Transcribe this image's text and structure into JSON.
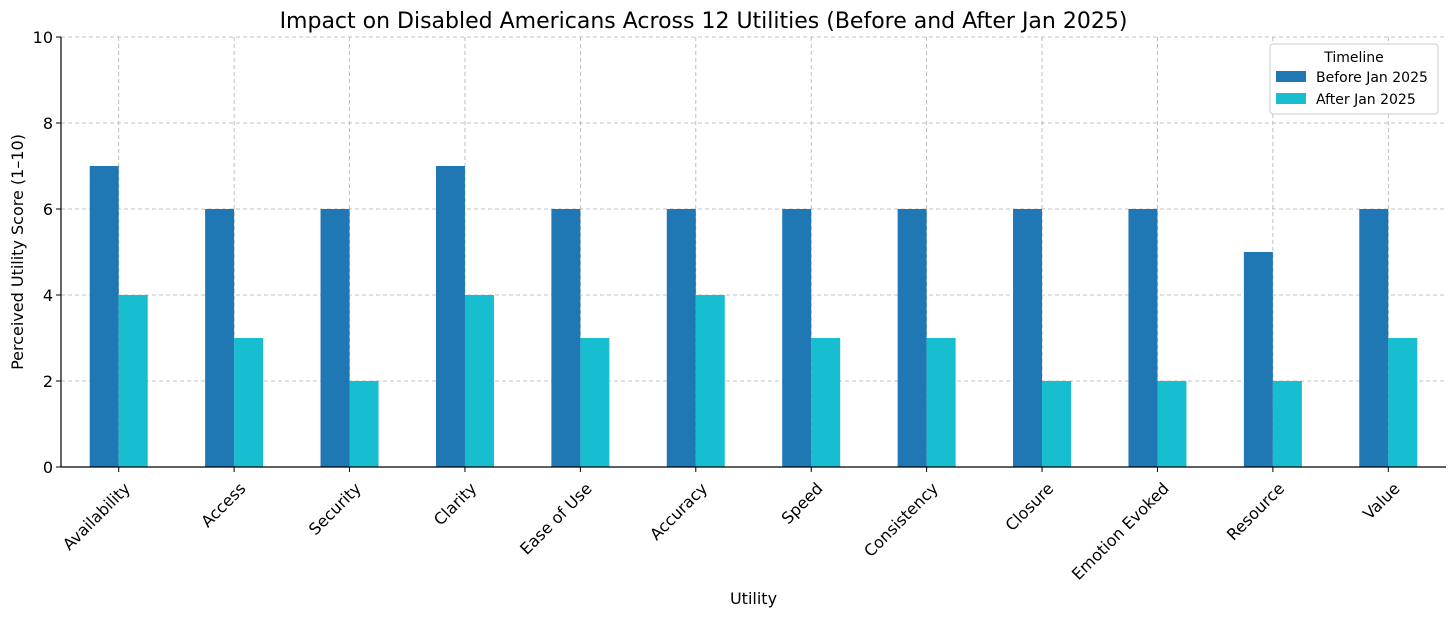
{
  "chart_data": {
    "type": "bar",
    "title": "Impact on Disabled Americans Across 12 Utilities (Before and After Jan 2025)",
    "xlabel": "Utility",
    "ylabel": "Perceived Utility Score (1–10)",
    "ylim": [
      0,
      10
    ],
    "yticks": [
      0,
      2,
      4,
      6,
      8,
      10
    ],
    "grid": true,
    "legend": {
      "title": "Timeline",
      "position": "top-right"
    },
    "categories": [
      "Availability",
      "Access",
      "Security",
      "Clarity",
      "Ease of Use",
      "Accuracy",
      "Speed",
      "Consistency",
      "Closure",
      "Emotion Evoked",
      "Resource",
      "Value"
    ],
    "series": [
      {
        "name": "Before Jan 2025",
        "color": "#1f77b4",
        "values": [
          7,
          6,
          6,
          7,
          6,
          6,
          6,
          6,
          6,
          6,
          5,
          6
        ]
      },
      {
        "name": "After Jan 2025",
        "color": "#17becf",
        "values": [
          4,
          3,
          2,
          4,
          3,
          4,
          3,
          3,
          2,
          2,
          2,
          3
        ]
      }
    ]
  }
}
